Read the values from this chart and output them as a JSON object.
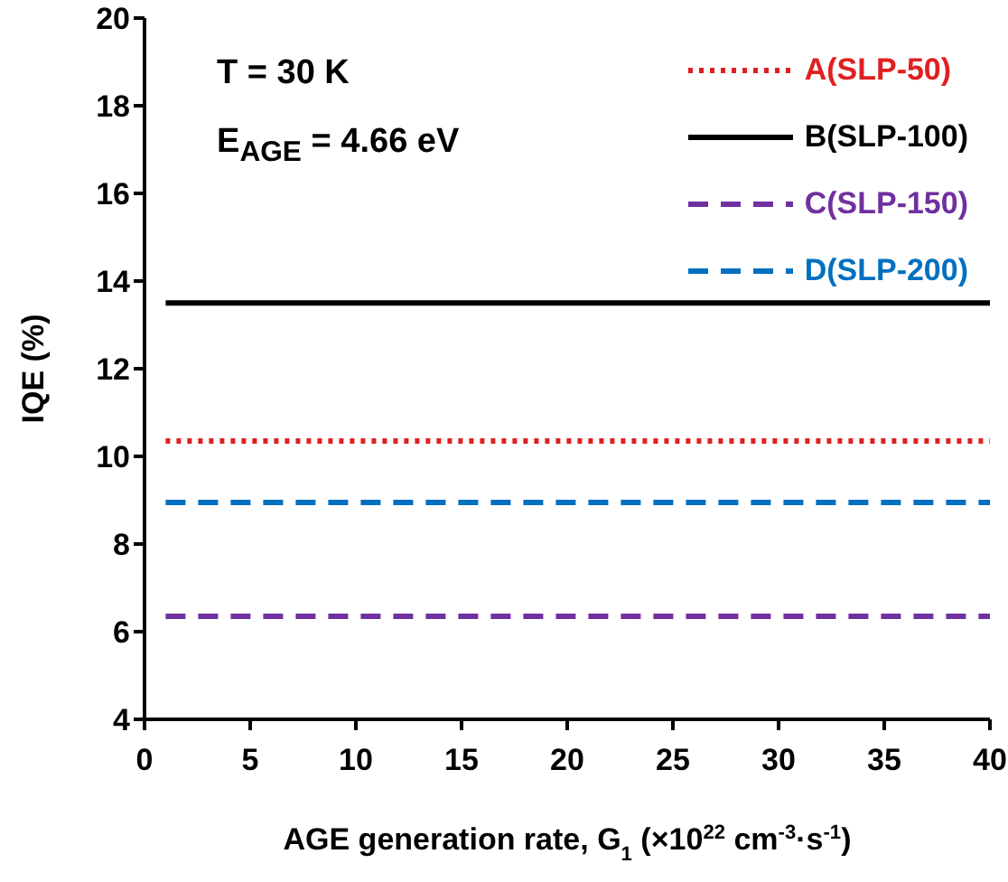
{
  "chart_data": {
    "type": "line",
    "xlabel": "AGE generation rate, G$_{1}$ (×10$^{22}$ cm$^{-3}$·s$^{-1}$)",
    "ylabel": "IQE (%)",
    "x": [
      1,
      40
    ],
    "series": [
      {
        "name": "A(SLP-50)",
        "color": "#e02020",
        "values": [
          10.35,
          10.35
        ],
        "line_style": "dotted"
      },
      {
        "name": "B(SLP-100)",
        "color": "#000000",
        "values": [
          13.5,
          13.5
        ],
        "line_style": "solid"
      },
      {
        "name": "C(SLP-150)",
        "color": "#7030a0",
        "values": [
          6.35,
          6.35
        ],
        "line_style": "dashed"
      },
      {
        "name": "D(SLP-200)",
        "color": "#0070c0",
        "values": [
          8.95,
          8.95
        ],
        "line_style": "dashed"
      }
    ],
    "xlim": [
      0,
      40
    ],
    "xticks": [
      0,
      5,
      10,
      15,
      20,
      25,
      30,
      35,
      40
    ],
    "ylim": [
      4,
      20
    ],
    "yticks": [
      4,
      6,
      8,
      10,
      12,
      14,
      16,
      18,
      20
    ],
    "grid": false,
    "legend": "top right",
    "marker": "none",
    "annotations": [
      "T = 30 K",
      "E$_{AGE}$ = 4.66 eV"
    ]
  }
}
